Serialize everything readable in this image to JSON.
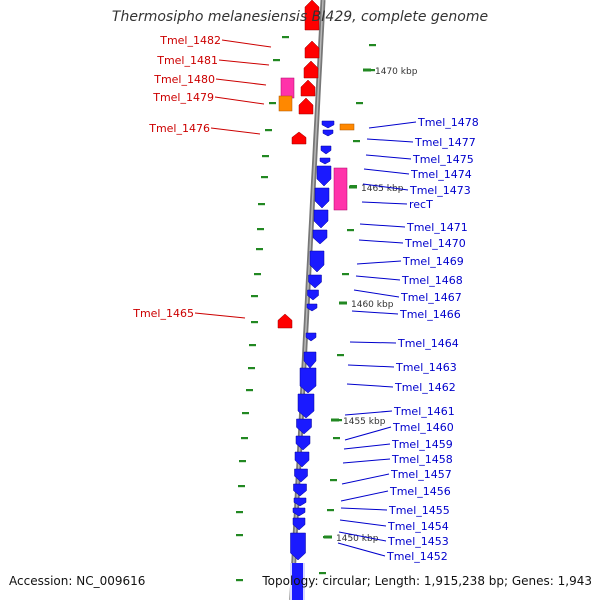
{
  "title": "Thermosipho melanesiensis BI429, complete genome",
  "footer": {
    "accession": "Accession: NC_009616",
    "topology": "Topology: circular; Length: 1,915,238 bp; Genes: 1,943"
  },
  "colors": {
    "forward_gene": "#ff0000",
    "reverse_gene": "#1a1aff",
    "forward_label": "#cc0000",
    "reverse_label": "#0000cc",
    "rna_pink": "#ff33aa",
    "rna_orange": "#ff8800",
    "gc_tick": "#228822",
    "backbone": "#777777"
  },
  "scale_labels": [
    "1470 kbp",
    "1465 kbp",
    "1460 kbp",
    "1455 kbp",
    "1450 kbp"
  ],
  "left_labels": [
    "Tmel_1482",
    "Tmel_1481",
    "Tmel_1480",
    "Tmel_1479",
    "Tmel_1476",
    "Tmel_1465"
  ],
  "right_labels": [
    "Tmel_1478",
    "Tmel_1477",
    "Tmel_1475",
    "Tmel_1474",
    "Tmel_1473",
    "recT",
    "Tmel_1471",
    "Tmel_1470",
    "Tmel_1469",
    "Tmel_1468",
    "Tmel_1467",
    "Tmel_1466",
    "Tmel_1464",
    "Tmel_1463",
    "Tmel_1462",
    "Tmel_1461",
    "Tmel_1460",
    "Tmel_1459",
    "Tmel_1458",
    "Tmel_1457",
    "Tmel_1456",
    "Tmel_1455",
    "Tmel_1454",
    "Tmel_1453",
    "Tmel_1452"
  ]
}
